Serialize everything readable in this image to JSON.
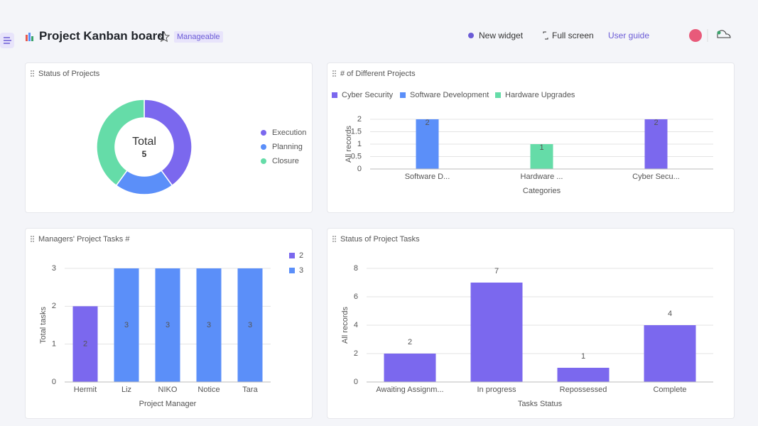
{
  "header": {
    "title": "Project Kanban board",
    "badge": "Manageable",
    "actions": [
      "New widget",
      "Full screen",
      "User guide"
    ]
  },
  "widgets": [
    {
      "title": "Status of Projects",
      "chart_data": {
        "type": "donut",
        "center_label": "Total",
        "center_value": 5,
        "series": [
          {
            "name": "Execution",
            "color": "#7b68ee",
            "value": 2
          },
          {
            "name": "Planning",
            "color": "#5b8ff9",
            "value": 1
          },
          {
            "name": "Closure",
            "color": "#65dca8",
            "value": 2
          }
        ]
      }
    },
    {
      "title": "# of Different Projects",
      "chart_data": {
        "type": "bar",
        "x_label": "Categories",
        "y_label": "All records",
        "categories": [
          "Software D...",
          "Hardware ...",
          "Cyber Secu..."
        ],
        "series": [
          {
            "name": "Cyber Security",
            "color": "#7b68ee",
            "values": [
              null,
              null,
              2
            ]
          },
          {
            "name": "Software Development",
            "color": "#5b8ff9",
            "values": [
              2,
              null,
              null
            ]
          },
          {
            "name": "Hardware Upgrades",
            "color": "#65dca8",
            "values": [
              null,
              1,
              null
            ]
          }
        ],
        "ylim": [
          0,
          2
        ],
        "yticks": [
          0,
          0.5,
          1,
          1.5,
          2
        ],
        "grid": true
      }
    },
    {
      "title": "Managers' Project Tasks #",
      "chart_data": {
        "type": "bar",
        "x_label": "Project Manager",
        "y_label": "Total tasks",
        "categories": [
          "Hermit",
          "Liz",
          "NIKO",
          "Notice",
          "Tara"
        ],
        "series": [
          {
            "name": "2",
            "color": "#7b68ee",
            "values": [
              2,
              null,
              null,
              null,
              null
            ]
          },
          {
            "name": "3",
            "color": "#5b8ff9",
            "values": [
              null,
              3,
              3,
              3,
              3
            ]
          }
        ],
        "ylim": [
          0,
          3
        ],
        "yticks": [
          0,
          1,
          2,
          3
        ],
        "grid": true
      }
    },
    {
      "title": "Status of Project Tasks",
      "chart_data": {
        "type": "bar",
        "x_label": "Tasks Status",
        "y_label": "All records",
        "categories": [
          "Awaiting Assignm...",
          "In progress",
          "Repossessed",
          "Complete"
        ],
        "series": [
          {
            "color": "#7b68ee",
            "values": [
              2,
              7,
              1,
              4
            ]
          }
        ],
        "ylim": [
          0,
          8
        ],
        "yticks": [
          0,
          2,
          4,
          6,
          8
        ],
        "grid": true
      }
    }
  ]
}
